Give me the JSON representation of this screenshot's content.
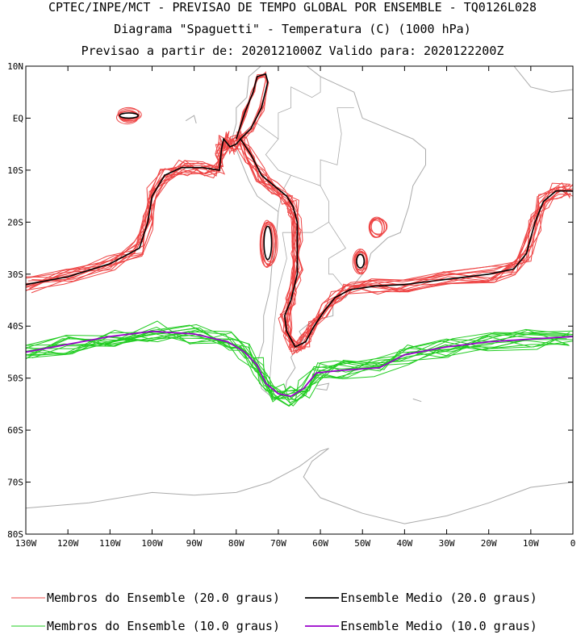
{
  "header": {
    "line1": "CPTEC/INPE/MCT - PREVISAO DE TEMPO GLOBAL POR ENSEMBLE - TQ0126L028",
    "line2": "Diagrama \"Spaguetti\" - Temperatura (C) (1000 hPa)",
    "line3": "Previsao a partir de: 2020121000Z  Valido para: 2020122200Z"
  },
  "colors": {
    "member_20": "#ee4444",
    "mean_20": "#000000",
    "member_10": "#22cc22",
    "mean_10": "#9900cc",
    "coast": "#aaaaaa"
  },
  "chart_data": {
    "type": "line",
    "map": "South America",
    "x_axis": {
      "range": [
        -130,
        0
      ],
      "ticks": [
        -130,
        -120,
        -110,
        -100,
        -90,
        -80,
        -70,
        -60,
        -50,
        -40,
        -30,
        -20,
        -10,
        0
      ],
      "tick_labels": [
        "130W",
        "120W",
        "110W",
        "100W",
        "90W",
        "80W",
        "70W",
        "60W",
        "50W",
        "40W",
        "30W",
        "20W",
        "10W",
        "0"
      ]
    },
    "y_axis": {
      "range": [
        -80,
        10
      ],
      "ticks": [
        10,
        0,
        -10,
        -20,
        -30,
        -40,
        -50,
        -60,
        -70,
        -80
      ],
      "tick_labels": [
        "10N",
        "EQ",
        "10S",
        "20S",
        "30S",
        "40S",
        "50S",
        "60S",
        "70S",
        "80S"
      ]
    },
    "grid": false,
    "legend_position": "bottom",
    "legend": [
      {
        "label": "Membros do Ensemble (20.0 graus)",
        "color": "#ee4444"
      },
      {
        "label": "Ensemble Medio (20.0 graus)",
        "color": "#000000"
      },
      {
        "label": "Membros do Ensemble (10.0 graus)",
        "color": "#22cc22"
      },
      {
        "label": "Ensemble Medio (10.0 graus)",
        "color": "#9900cc"
      }
    ],
    "contours": {
      "mean_20": [
        [
          -130,
          -32
        ],
        [
          -120,
          -30.5
        ],
        [
          -110,
          -28
        ],
        [
          -103,
          -25
        ],
        [
          -101,
          -20
        ],
        [
          -100,
          -15
        ],
        [
          -97,
          -11
        ],
        [
          -93,
          -9.5
        ],
        [
          -88,
          -9.5
        ],
        [
          -84,
          -10
        ],
        [
          -83.5,
          -6
        ],
        [
          -83,
          -4
        ],
        [
          -81.5,
          -5.5
        ],
        [
          -80,
          -5
        ],
        [
          -79,
          -4
        ],
        [
          -76.5,
          -7
        ],
        [
          -74,
          -11
        ],
        [
          -71,
          -13
        ],
        [
          -68,
          -15
        ],
        [
          -66.5,
          -17
        ],
        [
          -65.5,
          -20
        ],
        [
          -65.5,
          -25
        ],
        [
          -65.5,
          -30
        ],
        [
          -67,
          -35
        ],
        [
          -68.5,
          -38
        ],
        [
          -68,
          -41
        ],
        [
          -66,
          -44
        ],
        [
          -63.5,
          -43
        ],
        [
          -61.5,
          -40
        ],
        [
          -59,
          -37
        ],
        [
          -56.5,
          -34.5
        ],
        [
          -53,
          -33
        ],
        [
          -47,
          -32.3
        ],
        [
          -40,
          -32
        ],
        [
          -30,
          -31
        ],
        [
          -20,
          -30
        ],
        [
          -14,
          -29
        ],
        [
          -11,
          -26
        ],
        [
          -9,
          -20
        ],
        [
          -7,
          -16
        ],
        [
          -4,
          -14
        ],
        [
          0,
          -14
        ]
      ],
      "mean_10": [
        [
          -130,
          -45
        ],
        [
          -120,
          -43.5
        ],
        [
          -110,
          -42
        ],
        [
          -100,
          -41
        ],
        [
          -90,
          -41.5
        ],
        [
          -82,
          -43
        ],
        [
          -78,
          -45
        ],
        [
          -75,
          -47.5
        ],
        [
          -73,
          -51
        ],
        [
          -70,
          -53
        ],
        [
          -67,
          -53.5
        ],
        [
          -64,
          -52
        ],
        [
          -61,
          -49
        ],
        [
          -55,
          -48.5
        ],
        [
          -46,
          -48
        ],
        [
          -40,
          -45.5
        ],
        [
          -30,
          -44
        ],
        [
          -20,
          -43
        ],
        [
          -10,
          -42.5
        ],
        [
          0,
          -42
        ]
      ]
    }
  },
  "legend_items": [
    {
      "label": "Membros do Ensemble (20.0 graus)"
    },
    {
      "label": "Ensemble Medio (20.0 graus)"
    },
    {
      "label": "Membros do Ensemble (10.0 graus)"
    },
    {
      "label": "Ensemble Medio (10.0 graus)"
    }
  ]
}
